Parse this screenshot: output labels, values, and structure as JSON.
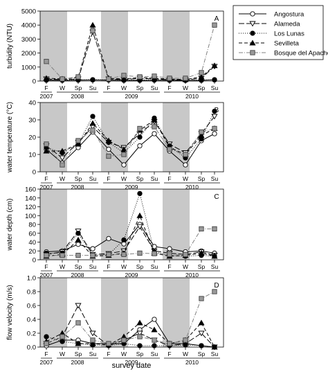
{
  "figure": {
    "x_axis_title": "survey date",
    "season_labels": [
      "F",
      "W",
      "Sp",
      "Su",
      "F",
      "W",
      "Sp",
      "Su",
      "F",
      "W",
      "Sp",
      "Su"
    ],
    "year_labels": [
      "2007",
      "2008",
      "2009",
      "2010"
    ],
    "shaded_seasons": [
      "F",
      "W"
    ]
  },
  "legend": {
    "entries": [
      {
        "name": "Angostura",
        "marker": "circle-open",
        "line": "solid",
        "color": "#000000"
      },
      {
        "name": "Alameda",
        "marker": "triangle-down-open",
        "line": "long-dash",
        "color": "#000000"
      },
      {
        "name": "Los Lunas",
        "marker": "circle-filled",
        "line": "dotted",
        "color": "#000000"
      },
      {
        "name": "Sevilleta",
        "marker": "triangle-up-filled",
        "line": "dash",
        "color": "#000000"
      },
      {
        "name": "Bosque del Apache",
        "marker": "square-gray",
        "line": "dash-dot",
        "color": "#808080"
      }
    ]
  },
  "chart_data": [
    {
      "type": "line",
      "panel": "A",
      "ylabel": "turbidity (NTU)",
      "ylim": [
        0,
        5000
      ],
      "yticks": [
        0,
        1000,
        2000,
        3000,
        4000,
        5000
      ],
      "x": [
        "F 2007",
        "W 2008",
        "Sp 2008",
        "Su 2008",
        "F 2008",
        "W 2009",
        "Sp 2009",
        "Su 2009",
        "F 2009",
        "W 2010",
        "Sp 2010",
        "Su 2010"
      ],
      "series": [
        {
          "name": "Angostura",
          "values": [
            60,
            50,
            60,
            80,
            70,
            50,
            50,
            60,
            50,
            40,
            50,
            100
          ]
        },
        {
          "name": "Alameda",
          "values": [
            150,
            100,
            150,
            3500,
            150,
            100,
            200,
            150,
            100,
            80,
            200,
            1050
          ]
        },
        {
          "name": "Los Lunas",
          "values": [
            80,
            60,
            100,
            100,
            80,
            60,
            80,
            80,
            60,
            50,
            80,
            80
          ]
        },
        {
          "name": "Sevilleta",
          "values": [
            200,
            150,
            250,
            4000,
            200,
            150,
            250,
            200,
            150,
            100,
            300,
            1100
          ]
        },
        {
          "name": "Bosque del Apache",
          "values": [
            1400,
            150,
            300,
            3600,
            150,
            400,
            300,
            350,
            200,
            200,
            600,
            4000
          ]
        }
      ]
    },
    {
      "type": "line",
      "panel": "B",
      "ylabel": "water temperature (°C)",
      "ylim": [
        0,
        40
      ],
      "yticks": [
        0,
        10,
        20,
        30,
        40
      ],
      "x": [
        "F 2007",
        "W 2008",
        "Sp 2008",
        "Su 2008",
        "F 2008",
        "W 2009",
        "Sp 2009",
        "Su 2009",
        "F 2009",
        "W 2010",
        "Sp 2010",
        "Su 2010"
      ],
      "series": [
        {
          "name": "Angostura",
          "values": [
            13,
            5,
            14,
            23,
            13,
            4,
            15,
            22,
            12,
            4,
            18,
            22
          ]
        },
        {
          "name": "Alameda",
          "values": [
            15,
            8,
            17,
            26,
            17,
            14,
            22,
            29,
            16,
            11,
            22,
            32
          ]
        },
        {
          "name": "Los Lunas",
          "values": [
            14,
            11,
            16,
            32,
            17,
            11,
            20,
            31,
            15,
            8,
            19,
            35
          ]
        },
        {
          "name": "Sevilleta",
          "values": [
            12,
            12,
            16,
            28,
            18,
            13,
            24,
            30,
            14,
            10,
            21,
            25
          ]
        },
        {
          "name": "Bosque del Apache",
          "values": [
            16,
            4,
            18,
            24,
            9,
            10,
            25,
            26,
            13,
            10,
            23,
            25
          ]
        }
      ]
    },
    {
      "type": "line",
      "panel": "C",
      "ylabel": "water depth (cm)",
      "ylim": [
        0,
        160
      ],
      "yticks": [
        0,
        20,
        40,
        60,
        80,
        100,
        120,
        140,
        160
      ],
      "x": [
        "F 2007",
        "W 2008",
        "Sp 2008",
        "Su 2008",
        "F 2008",
        "W 2009",
        "Sp 2009",
        "Su 2009",
        "F 2009",
        "W 2010",
        "Sp 2010",
        "Su 2010"
      ],
      "series": [
        {
          "name": "Angostura",
          "values": [
            18,
            20,
            35,
            25,
            48,
            36,
            80,
            30,
            25,
            18,
            20,
            15
          ]
        },
        {
          "name": "Alameda",
          "values": [
            12,
            18,
            65,
            12,
            14,
            20,
            75,
            20,
            15,
            12,
            18,
            10
          ]
        },
        {
          "name": "Los Lunas",
          "values": [
            15,
            15,
            60,
            10,
            12,
            45,
            150,
            18,
            10,
            8,
            10,
            8
          ]
        },
        {
          "name": "Sevilleta",
          "values": [
            8,
            12,
            45,
            8,
            10,
            15,
            100,
            15,
            8,
            10,
            15,
            8
          ]
        },
        {
          "name": "Bosque del Apache",
          "values": [
            10,
            10,
            10,
            10,
            12,
            12,
            15,
            14,
            12,
            12,
            70,
            70
          ]
        }
      ]
    },
    {
      "type": "line",
      "panel": "D",
      "ylabel": "flow velocity (m/s)",
      "ylim": [
        0,
        1.0
      ],
      "yticks": [
        0,
        0.2,
        0.4,
        0.6,
        0.8,
        1.0
      ],
      "x": [
        "F 2007",
        "W 2008",
        "Sp 2008",
        "Su 2008",
        "F 2008",
        "W 2009",
        "Sp 2009",
        "Su 2009",
        "F 2009",
        "W 2010",
        "Sp 2010",
        "Su 2010"
      ],
      "series": [
        {
          "name": "Angostura",
          "values": [
            0.02,
            0.1,
            0.1,
            0.05,
            0.05,
            0.05,
            0.25,
            0.4,
            0.05,
            0.05,
            0.02,
            0.0
          ]
        },
        {
          "name": "Alameda",
          "values": [
            0.05,
            0.15,
            0.6,
            0.2,
            0.02,
            0.1,
            0.2,
            0.1,
            0.02,
            0.05,
            0.2,
            0.0
          ]
        },
        {
          "name": "Los Lunas",
          "values": [
            0.15,
            0.08,
            0.05,
            0.03,
            0.02,
            0.05,
            0.02,
            0.02,
            0.02,
            0.03,
            0.02,
            0.0
          ]
        },
        {
          "name": "Sevilleta",
          "values": [
            0.08,
            0.2,
            0.05,
            0.05,
            0.03,
            0.15,
            0.35,
            0.25,
            0.05,
            0.1,
            0.35,
            0.0
          ]
        },
        {
          "name": "Bosque del Apache",
          "values": [
            0.05,
            0.15,
            0.35,
            0.1,
            0.05,
            0.1,
            0.15,
            0.1,
            0.05,
            0.1,
            0.7,
            0.8
          ]
        }
      ]
    }
  ]
}
